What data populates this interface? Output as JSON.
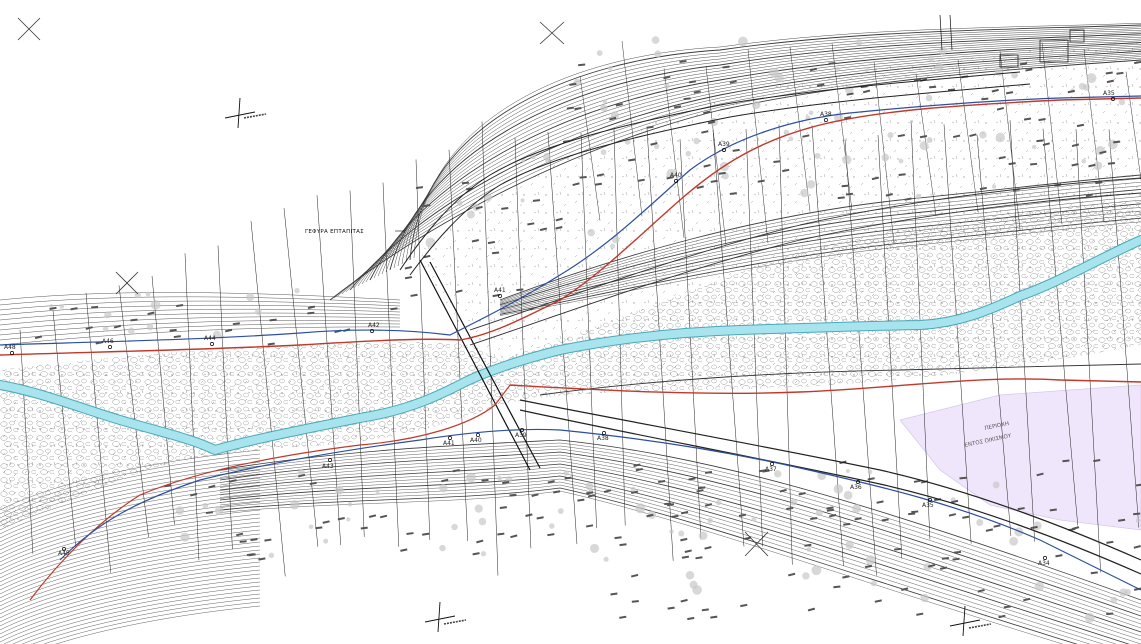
{
  "labels": {
    "bridge": "ΓΕΦΥΡΑ ΕΠΤΑΠΙΤΑΣ",
    "zone_line1": "ΠΕΡΙΟΧΗ",
    "zone_line2": "ΕΝΤΟΣ ΟΙΚΙΣΜΟΥ"
  },
  "top_stations": [
    "A48",
    "A46",
    "A44",
    "A42",
    "A41",
    "A40",
    "A39",
    "A38",
    "A35"
  ],
  "bottom_stations": [
    "A45",
    "A43",
    "A41",
    "A40",
    "A39",
    "A38",
    "A37",
    "A36",
    "A35",
    "A34"
  ],
  "colors": {
    "river": "#a8e4ee",
    "river_edge": "#4aa8b8",
    "road_red": "#c0392b",
    "road_blue": "#2c4f9e",
    "contour": "#333333",
    "tree": "#b0b0b0",
    "settlement": "#efe6fb"
  }
}
